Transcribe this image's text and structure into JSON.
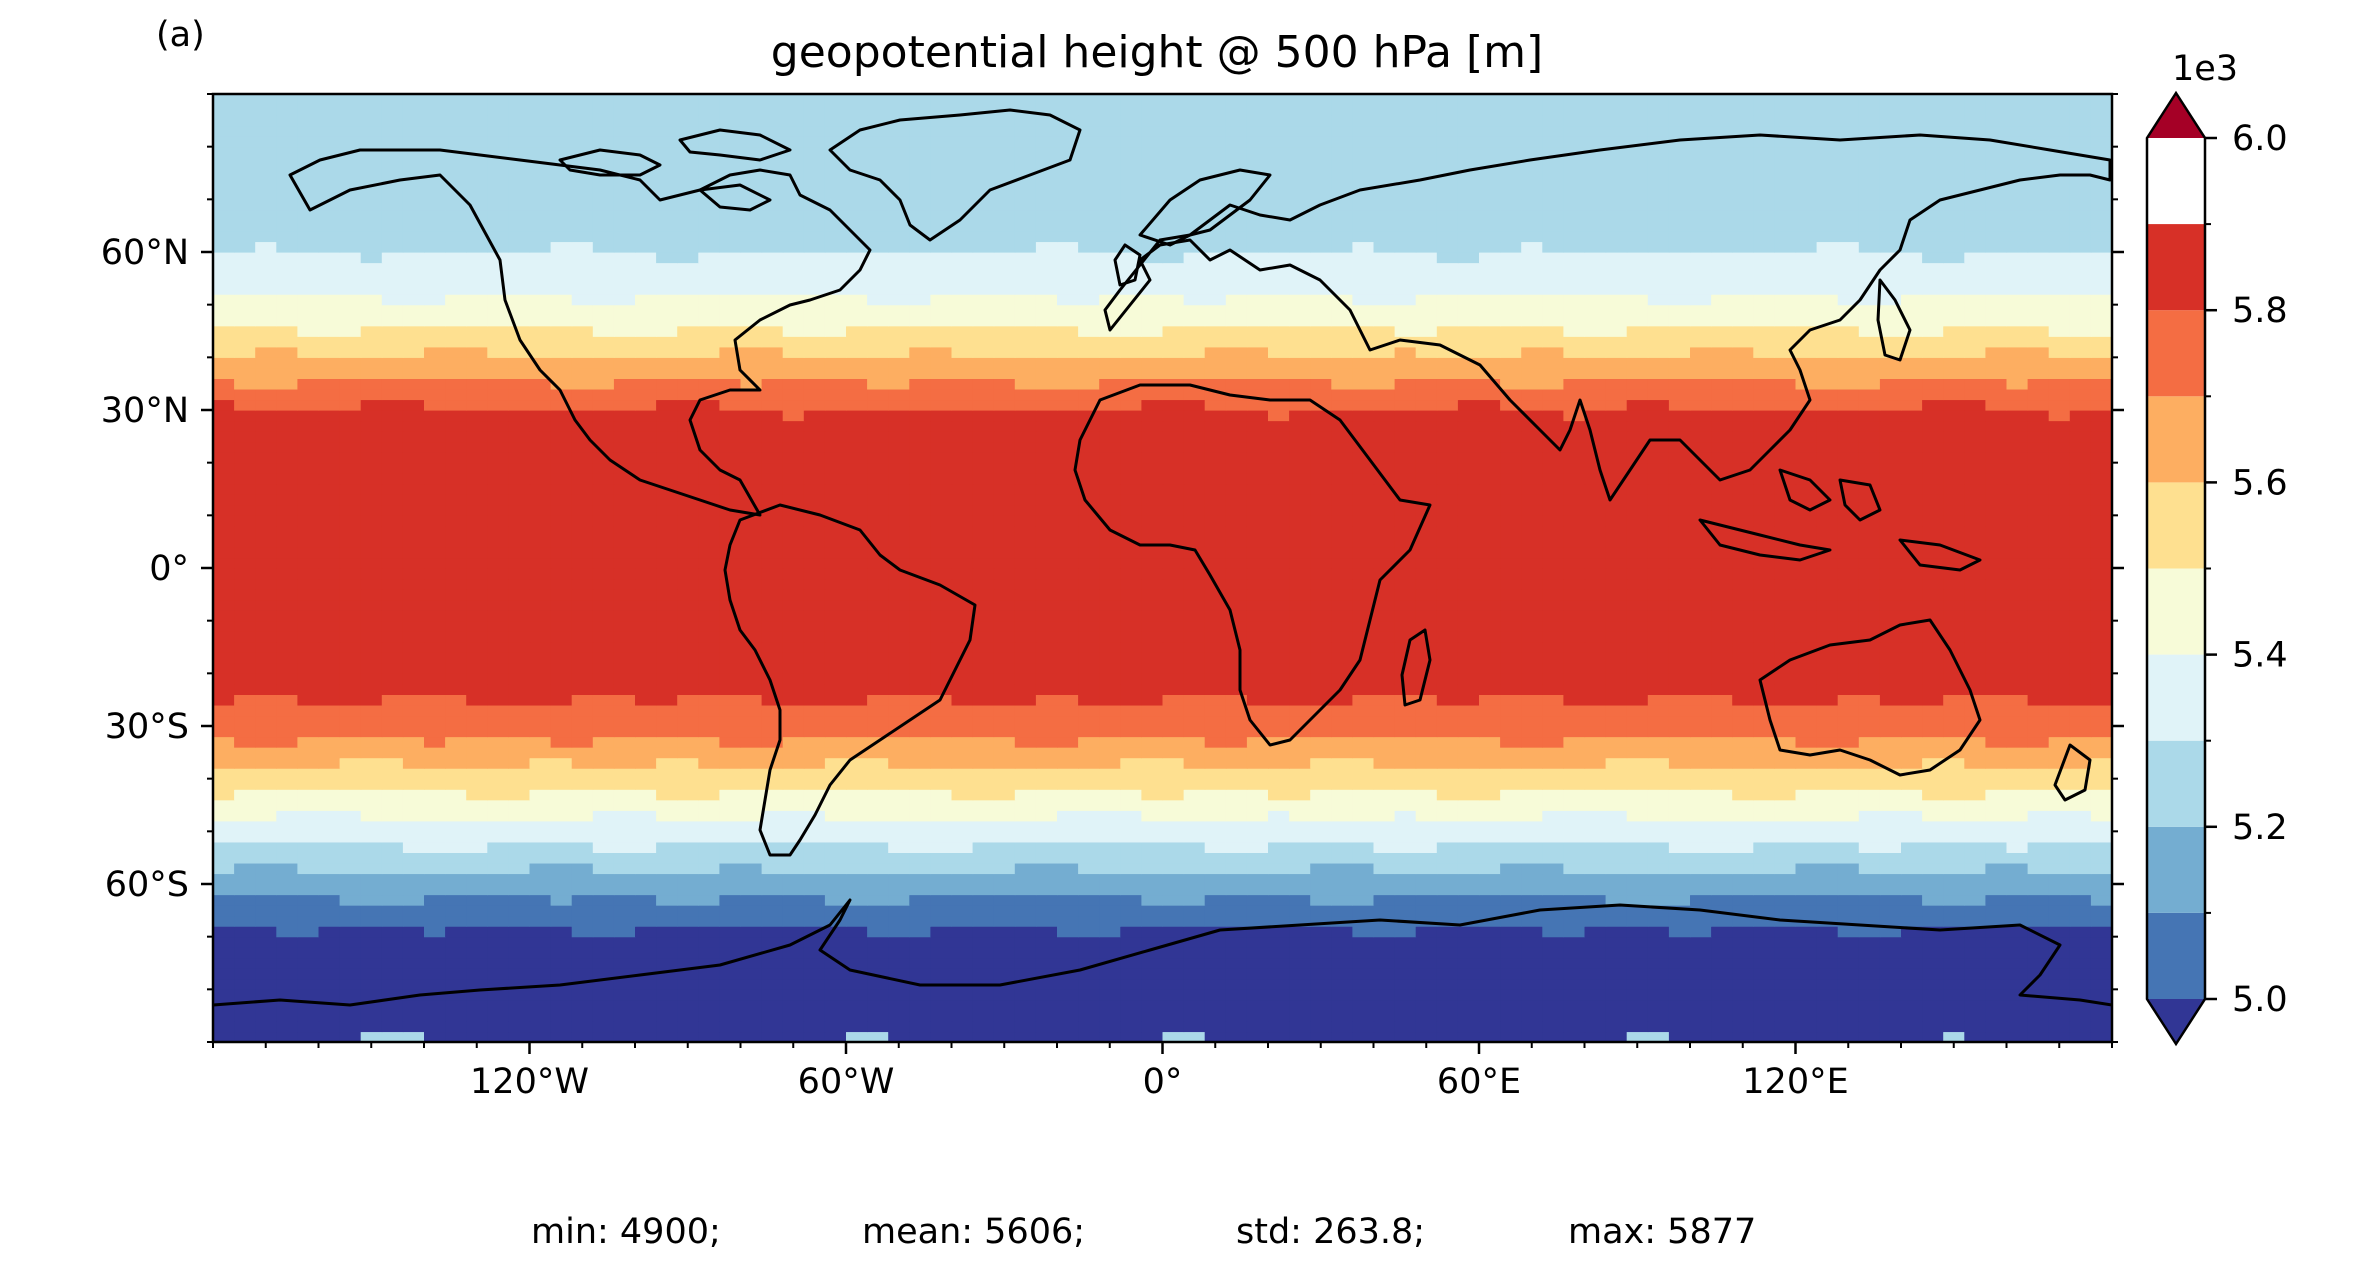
{
  "chart_data": {
    "type": "heatmap",
    "panel_label": "(a)",
    "title": "geopotential height @ 500 hPa [m]",
    "projection": "PlateCarree",
    "lon_range": [
      -180,
      180
    ],
    "lat_range": [
      -90,
      90
    ],
    "x_ticks": [
      {
        "value": -120,
        "label": "120°W"
      },
      {
        "value": -60,
        "label": "60°W"
      },
      {
        "value": 0,
        "label": "0°"
      },
      {
        "value": 60,
        "label": "60°E"
      },
      {
        "value": 120,
        "label": "120°E"
      }
    ],
    "y_ticks": [
      {
        "value": 60,
        "label": "60°N"
      },
      {
        "value": 30,
        "label": "30°N"
      },
      {
        "value": 0,
        "label": "0°"
      },
      {
        "value": -30,
        "label": "30°S"
      },
      {
        "value": -60,
        "label": "60°S"
      }
    ],
    "colorbar": {
      "multiplier_label": "1e3",
      "levels": [
        4.9,
        5.0,
        5.1,
        5.2,
        5.3,
        5.4,
        5.5,
        5.6,
        5.7,
        5.8,
        5.9,
        6.0
      ],
      "colors": [
        "#313695",
        "#4575b4",
        "#74add1",
        "#abd9e9",
        "#e0f3f8",
        "#f7fbd8",
        "#fee090",
        "#fdae61",
        "#f46d43",
        "#d73027",
        "#a50026"
      ],
      "under_color": "#313695",
      "over_color": "#a50026",
      "ticks": [
        {
          "value": 6.0,
          "label": "6.0"
        },
        {
          "value": 5.8,
          "label": "5.8"
        },
        {
          "value": 5.6,
          "label": "5.6"
        },
        {
          "value": 5.4,
          "label": "5.4"
        },
        {
          "value": 5.2,
          "label": "5.2"
        },
        {
          "value": 5.0,
          "label": "5.0"
        }
      ],
      "extend": "both"
    },
    "zonal_profile": [
      {
        "lat": -90,
        "value": 4.9
      },
      {
        "lat": -80,
        "value": 4.95
      },
      {
        "lat": -70,
        "value": 4.98
      },
      {
        "lat": -65,
        "value": 5.05
      },
      {
        "lat": -60,
        "value": 5.15
      },
      {
        "lat": -55,
        "value": 5.25
      },
      {
        "lat": -50,
        "value": 5.35
      },
      {
        "lat": -45,
        "value": 5.45
      },
      {
        "lat": -40,
        "value": 5.55
      },
      {
        "lat": -35,
        "value": 5.65
      },
      {
        "lat": -30,
        "value": 5.75
      },
      {
        "lat": -20,
        "value": 5.85
      },
      {
        "lat": 0,
        "value": 5.86
      },
      {
        "lat": 20,
        "value": 5.86
      },
      {
        "lat": 28,
        "value": 5.84
      },
      {
        "lat": 33,
        "value": 5.75
      },
      {
        "lat": 38,
        "value": 5.65
      },
      {
        "lat": 43,
        "value": 5.55
      },
      {
        "lat": 48,
        "value": 5.45
      },
      {
        "lat": 55,
        "value": 5.35
      },
      {
        "lat": 65,
        "value": 5.25
      },
      {
        "lat": 90,
        "value": 5.21
      }
    ],
    "stats": {
      "min": "min: 4900;",
      "mean": "mean: 5606;",
      "std": "std: 263.8;",
      "max": "max: 5877"
    }
  }
}
